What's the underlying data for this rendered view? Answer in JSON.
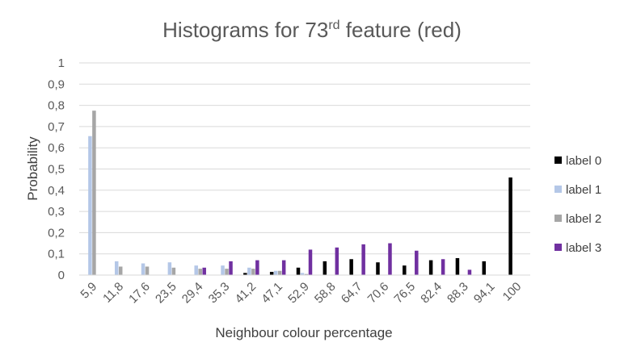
{
  "chart_data": {
    "type": "bar",
    "title": "Histograms for 73",
    "title_superscript": "rd",
    "title_suffix": " feature (red)",
    "xlabel": "Neighbour colour percentage",
    "ylabel": "Probability",
    "ylim": [
      0,
      1
    ],
    "yticks": [
      "0",
      "0,1",
      "0,2",
      "0,3",
      "0,4",
      "0,5",
      "0,6",
      "0,7",
      "0,8",
      "0,9",
      "1"
    ],
    "grid": true,
    "legend_position": "right",
    "categories": [
      "5,9",
      "11,8",
      "17,6",
      "23,5",
      "29,4",
      "35,3",
      "41,2",
      "47,1",
      "52,9",
      "58,8",
      "64,7",
      "70,6",
      "76,5",
      "82,4",
      "88,3",
      "94,1",
      "100"
    ],
    "series": [
      {
        "name": "label 0",
        "color": "#000000",
        "values": [
          0,
          0,
          0,
          0,
          0,
          0,
          0.01,
          0.015,
          0.035,
          0.065,
          0.075,
          0.06,
          0.045,
          0.07,
          0.08,
          0.065,
          0.46
        ]
      },
      {
        "name": "label 1",
        "color": "#b4c7e7",
        "values": [
          0.655,
          0.065,
          0.055,
          0.06,
          0.045,
          0.045,
          0.035,
          0.02,
          0.01,
          0,
          0,
          0,
          0,
          0,
          0,
          0,
          0
        ]
      },
      {
        "name": "label 2",
        "color": "#a6a6a6",
        "values": [
          0.775,
          0.04,
          0.04,
          0.035,
          0.03,
          0.03,
          0.03,
          0.02,
          0.005,
          0,
          0,
          0,
          0,
          0,
          0,
          0,
          0
        ]
      },
      {
        "name": "label 3",
        "color": "#7030a0",
        "values": [
          0,
          0,
          0,
          0,
          0.035,
          0.065,
          0.07,
          0.07,
          0.12,
          0.13,
          0.145,
          0.15,
          0.115,
          0.075,
          0.025,
          0,
          0
        ]
      }
    ]
  }
}
